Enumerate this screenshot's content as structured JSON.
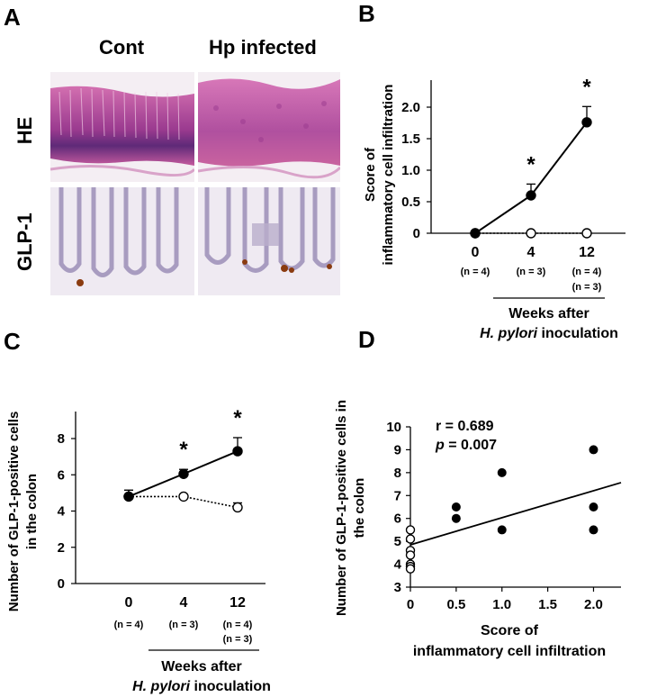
{
  "panels": {
    "a": "A",
    "b": "B",
    "c": "C",
    "d": "D"
  },
  "histology": {
    "col_headers": [
      "Cont",
      "Hp infected"
    ],
    "row_labels": [
      "HE",
      "GLP-1"
    ]
  },
  "colors": {
    "he_stain": "#b5408f",
    "he_dark": "#6b2c7a",
    "glp_bg": "#e7e2ec",
    "glp_tissue": "#b9aecb",
    "glp_positive": "#8a3b10"
  },
  "chart_data": [
    {
      "id": "B",
      "type": "line",
      "ylabel_lines": [
        "Score of",
        "inflammatory cell infiltration"
      ],
      "x_categories": [
        "0",
        "4",
        "12"
      ],
      "n_labels": [
        [
          "(n = 4)"
        ],
        [
          "(n = 3)"
        ],
        [
          "(n = 4)",
          "(n = 3)"
        ]
      ],
      "xlabel_lines": [
        "Weeks after",
        "H. pylori inoculation"
      ],
      "ylim": [
        0,
        2.0
      ],
      "yticks": [
        "0",
        "0.5",
        "1.0",
        "1.5",
        "2.0"
      ],
      "series": [
        {
          "marker": "filled",
          "line": "solid",
          "values": [
            0,
            0.6,
            1.76
          ],
          "errors": [
            0,
            0.18,
            0.25
          ]
        },
        {
          "marker": "open",
          "line": "dotted",
          "values": [
            0,
            0,
            0
          ],
          "errors": [
            0,
            0,
            0
          ]
        }
      ],
      "significance": [
        "",
        "*",
        "*"
      ]
    },
    {
      "id": "C",
      "type": "line",
      "ylabel_lines": [
        "Number of GLP-1-positive cells",
        "in the colon"
      ],
      "x_categories": [
        "0",
        "4",
        "12"
      ],
      "n_labels": [
        [
          "(n = 4)"
        ],
        [
          "(n = 3)"
        ],
        [
          "(n = 4)",
          "(n = 3)"
        ]
      ],
      "xlabel_lines": [
        "Weeks after",
        "H. pylori inoculation"
      ],
      "ylim": [
        0,
        8
      ],
      "yticks": [
        "0",
        "2",
        "4",
        "6",
        "8"
      ],
      "series": [
        {
          "marker": "filled",
          "line": "solid",
          "values": [
            4.8,
            6.05,
            7.3
          ],
          "errors": [
            0.35,
            0.25,
            0.75
          ]
        },
        {
          "marker": "open",
          "line": "dotted",
          "values": [
            4.8,
            4.8,
            4.2
          ],
          "errors": [
            0.35,
            0,
            0.25
          ]
        }
      ],
      "significance": [
        "",
        "*",
        "*"
      ]
    },
    {
      "id": "D",
      "type": "scatter",
      "ylabel_lines": [
        "Number of GLP-1-positive cells in",
        "the colon"
      ],
      "xlabel_lines": [
        "Score of",
        "inflammatory cell infiltration"
      ],
      "xlim": [
        0,
        2.3
      ],
      "ylim": [
        3,
        10
      ],
      "xticks": [
        "0",
        "0.5",
        "1.0",
        "1.5",
        "2.0"
      ],
      "yticks": [
        "3",
        "4",
        "5",
        "6",
        "7",
        "8",
        "9",
        "10"
      ],
      "stats": {
        "r": "r = 0.689",
        "p_label": "p",
        "p_value": " = 0.007"
      },
      "filled_points": [
        [
          0.5,
          6.5
        ],
        [
          0.5,
          6.0
        ],
        [
          1.0,
          8.0
        ],
        [
          1.0,
          5.5
        ],
        [
          2.0,
          9.0
        ],
        [
          2.0,
          6.5
        ],
        [
          2.0,
          5.5
        ]
      ],
      "open_points": [
        [
          0,
          5.5
        ],
        [
          0,
          5.1
        ],
        [
          0,
          4.6
        ],
        [
          0,
          4.4
        ],
        [
          0,
          4.0
        ],
        [
          0,
          3.9
        ],
        [
          0,
          3.8
        ]
      ],
      "regression": {
        "intercept": 4.85,
        "slope": 1.18
      }
    }
  ]
}
